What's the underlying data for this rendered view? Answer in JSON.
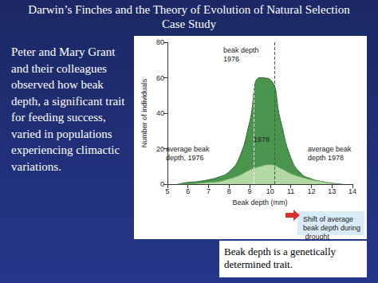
{
  "slide": {
    "title": [
      "Darwin’s Finches and the Theory of Evolution of Natural Selection",
      "Case Study"
    ],
    "text": "Peter and Mary Grant and their colleagues observed how beak depth, a significant trait for feeding success, varied in populations experiencing climactic variations.",
    "note": "Beak depth is a genetically determined trait."
  },
  "chart_data": {
    "type": "area",
    "x_label": "Beak depth (mm)",
    "y_label": "Number of individuals",
    "x": [
      5.5,
      6,
      6.5,
      7,
      7.5,
      8,
      8.5,
      9,
      9.5,
      10,
      10.5,
      11,
      11.5,
      12,
      12.5,
      13,
      13.5
    ],
    "series": [
      {
        "color": "#3f8f45",
        "average": 9.2,
        "values": [
          0,
          1,
          1.5,
          2.5,
          4,
          7,
          15,
          35,
          60,
          59,
          36,
          15,
          6,
          3,
          1.5,
          0.5,
          0
        ]
      },
      {
        "color": "#b8dca8",
        "average": 10.2,
        "values": [
          0,
          0,
          0.5,
          1,
          1.5,
          3,
          5,
          8,
          10,
          11,
          9,
          6,
          4,
          2.5,
          1.5,
          0.5,
          0
        ]
      }
    ],
    "annotations": [
      "beak depth 1976",
      "average beak depth, 1976",
      "1978",
      "average beak depth 1978",
      "Shift of average beak depth during drought"
    ],
    "xlim": [
      5,
      14
    ],
    "xticks": [
      5,
      6,
      7,
      8,
      9,
      10,
      11,
      12,
      13,
      14
    ],
    "ylim": [
      0,
      80
    ],
    "yticks": [
      0,
      20,
      40,
      60,
      80
    ],
    "grid": false
  }
}
